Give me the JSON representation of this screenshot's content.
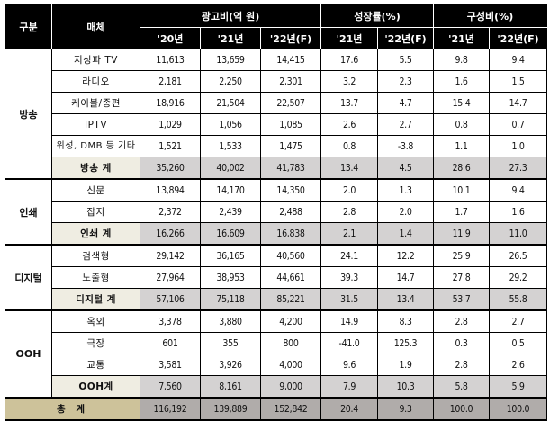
{
  "header": {
    "category": "구분",
    "media": "매체",
    "ad_spend_group": "광고비(억 원)",
    "growth_group": "성장률(%)",
    "share_group": "구성비(%)",
    "ad_spend_cols": [
      "'20년",
      "'21년",
      "'22년(F)"
    ],
    "growth_cols": [
      "'21년",
      "'22년(F)"
    ],
    "share_cols": [
      "'21년",
      "'22년(F)"
    ]
  },
  "groups": [
    {
      "category": "방송",
      "rows": [
        {
          "media": "지상파 TV",
          "values": [
            "11,613",
            "13,659",
            "14,415",
            "17.6",
            "5.5",
            "9.8",
            "9.4"
          ]
        },
        {
          "media": "라디오",
          "values": [
            "2,181",
            "2,250",
            "2,301",
            "3.2",
            "2.3",
            "1.6",
            "1.5"
          ]
        },
        {
          "media": "케이블/종편",
          "values": [
            "18,916",
            "21,504",
            "22,507",
            "13.7",
            "4.7",
            "15.4",
            "14.7"
          ]
        },
        {
          "media": "IPTV",
          "values": [
            "1,029",
            "1,056",
            "1,085",
            "2.6",
            "2.7",
            "0.8",
            "0.7"
          ]
        },
        {
          "media": "위성, DMB 등 기타",
          "values": [
            "1,521",
            "1,533",
            "1,475",
            "0.8",
            "-3.8",
            "1.1",
            "1.0"
          ]
        }
      ],
      "subtotal": {
        "media": "방송 계",
        "values": [
          "35,260",
          "40,002",
          "41,783",
          "13.4",
          "4.5",
          "28.6",
          "27.3"
        ]
      }
    },
    {
      "category": "인쇄",
      "rows": [
        {
          "media": "신문",
          "values": [
            "13,894",
            "14,170",
            "14,350",
            "2.0",
            "1.3",
            "10.1",
            "9.4"
          ]
        },
        {
          "media": "잡지",
          "values": [
            "2,372",
            "2,439",
            "2,488",
            "2.8",
            "2.0",
            "1.7",
            "1.6"
          ]
        }
      ],
      "subtotal": {
        "media": "인쇄 계",
        "values": [
          "16,266",
          "16,609",
          "16,838",
          "2.1",
          "1.4",
          "11.9",
          "11.0"
        ]
      }
    },
    {
      "category": "디지털",
      "rows": [
        {
          "media": "검색형",
          "values": [
            "29,142",
            "36,165",
            "40,560",
            "24.1",
            "12.2",
            "25.9",
            "26.5"
          ]
        },
        {
          "media": "노출형",
          "values": [
            "27,964",
            "38,953",
            "44,661",
            "39.3",
            "14.7",
            "27.8",
            "29.2"
          ]
        }
      ],
      "subtotal": {
        "media": "디지털 계",
        "values": [
          "57,106",
          "75,118",
          "85,221",
          "31.5",
          "13.4",
          "53.7",
          "55.8"
        ]
      }
    },
    {
      "category": "OOH",
      "rows": [
        {
          "media": "옥외",
          "values": [
            "3,378",
            "3,880",
            "4,200",
            "14.9",
            "8.3",
            "2.8",
            "2.7"
          ]
        },
        {
          "media": "극장",
          "values": [
            "601",
            "355",
            "800",
            "-41.0",
            "125.3",
            "0.3",
            "0.5"
          ]
        },
        {
          "media": "교통",
          "values": [
            "3,581",
            "3,926",
            "4,000",
            "9.6",
            "1.9",
            "2.8",
            "2.6"
          ]
        }
      ],
      "subtotal": {
        "media": "OOH계",
        "values": [
          "7,560",
          "8,161",
          "9,000",
          "7.9",
          "10.3",
          "5.8",
          "5.9"
        ]
      }
    }
  ],
  "total": {
    "label": "총 계",
    "values": [
      "116,192",
      "139,889",
      "152,842",
      "20.4",
      "9.3",
      "100.0",
      "100.0"
    ]
  },
  "colors": {
    "header_bg": "#000000",
    "header_text": "#ffffff",
    "subtotal_label_bg": "#efede2",
    "subtotal_value_bg": "#d4d2d2",
    "total_label_bg": "#cdc29a",
    "total_value_bg": "#b0acaa"
  }
}
